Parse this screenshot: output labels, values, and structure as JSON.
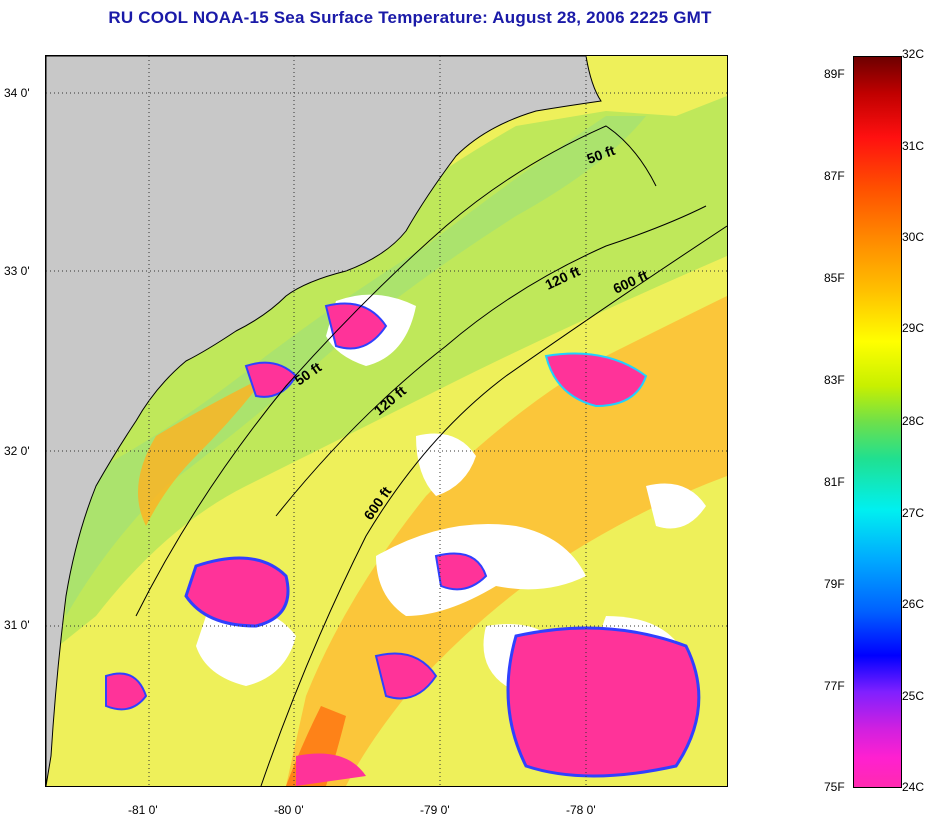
{
  "title": "RU COOL  NOAA-15  Sea Surface Temperature:  August 28, 2006 2225 GMT",
  "axes": {
    "y_ticks": [
      "34 0'",
      "33 0'",
      "32 0'",
      "31 0'"
    ],
    "x_ticks": [
      "-81 0'",
      "-80 0'",
      "-79 0'",
      "-78 0'"
    ]
  },
  "isobath_labels": [
    "50 ft",
    "120 ft",
    "600 ft",
    "50 ft",
    "120 ft",
    "600 ft"
  ],
  "colorbar": {
    "celsius": [
      "32C",
      "31C",
      "30C",
      "29C",
      "28C",
      "27C",
      "26C",
      "25C",
      "24C"
    ],
    "fahrenheit": [
      "89F",
      "87F",
      "85F",
      "83F",
      "81F",
      "79F",
      "77F",
      "75F"
    ]
  },
  "colors": {
    "title": "#1a1aa8",
    "land": "#c8c8c8",
    "ocean_warm": "#f2f268",
    "cloud": "#ffffff",
    "cold_patch": "#ff3399"
  }
}
